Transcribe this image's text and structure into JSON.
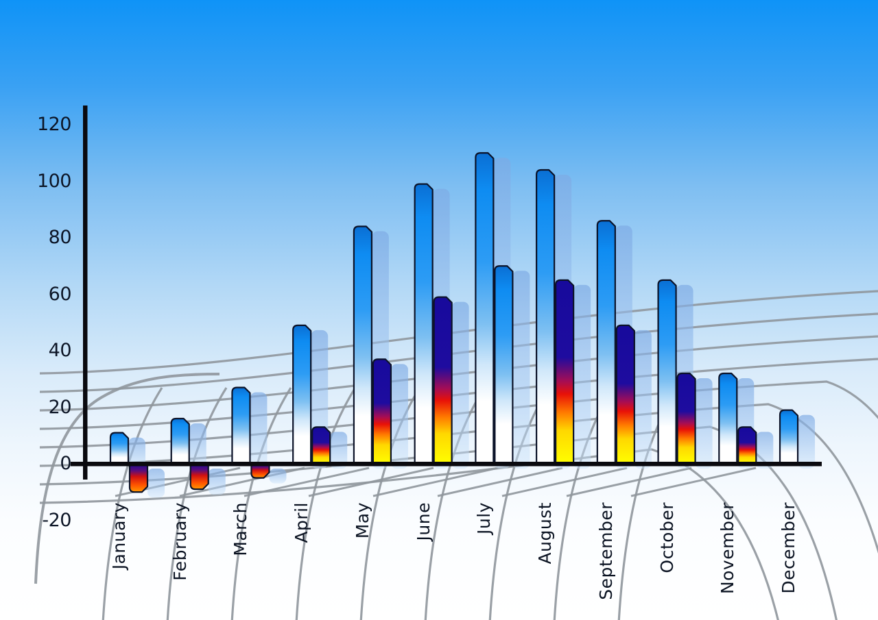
{
  "chart_data": {
    "type": "bar",
    "title": "",
    "categories": [
      "January",
      "February",
      "March",
      "April",
      "May",
      "June",
      "July",
      "August",
      "September",
      "October",
      "November",
      "December"
    ],
    "series": [
      {
        "name": "blue-gradient-bars",
        "values": [
          11,
          16,
          27,
          49,
          84,
          99,
          110,
          104,
          86,
          65,
          32,
          19
        ]
      },
      {
        "name": "heat-gradient-bars",
        "values": [
          -10,
          -9,
          -5,
          13,
          37,
          59,
          70,
          65,
          49,
          32,
          13,
          null
        ],
        "bar_styles": [
          "heat",
          "heat",
          "heat",
          "heat",
          "heat",
          "heat",
          "blue",
          "heat",
          "heat",
          "heat",
          "heat",
          "none"
        ]
      }
    ],
    "yticks": [
      120,
      100,
      80,
      60,
      40,
      20,
      0,
      -20
    ],
    "ylim": [
      -20,
      120
    ],
    "xlabel": "",
    "ylabel": "",
    "legend_position": "none",
    "grid": "curved gray perspective grid",
    "background": "sky blue vertical gradient",
    "bar_shadow": "translucent light-blue extrusion offset right and down"
  },
  "colors": {
    "background_top": "#0f93f7",
    "background_bottom": "#ffffff",
    "axis": "#0a0a0f",
    "tick_label": "#0c1526",
    "grid_line": "#8f969c",
    "bar_outline": "#0b1228",
    "blue_bar_gradient": [
      "#0a6fd4",
      "#0e8cf2",
      "#2d9cf4",
      "#7ec0f2",
      "#cfe7fa",
      "#ffffff"
    ],
    "heat_bar_gradient": [
      "#170a9c",
      "#1e0c9f",
      "#a50d55",
      "#e81108",
      "#ff7a00",
      "#ffd800",
      "#ffff00"
    ],
    "negative_bar_gradient": [
      "#1c0b94",
      "#5c0d7a",
      "#d01111",
      "#ff5500",
      "#ff9900"
    ],
    "shadow_bar_top": "rgba(125,170,228,0.68)",
    "shadow_bar_bottom": "rgba(205,228,250,0.45)"
  }
}
